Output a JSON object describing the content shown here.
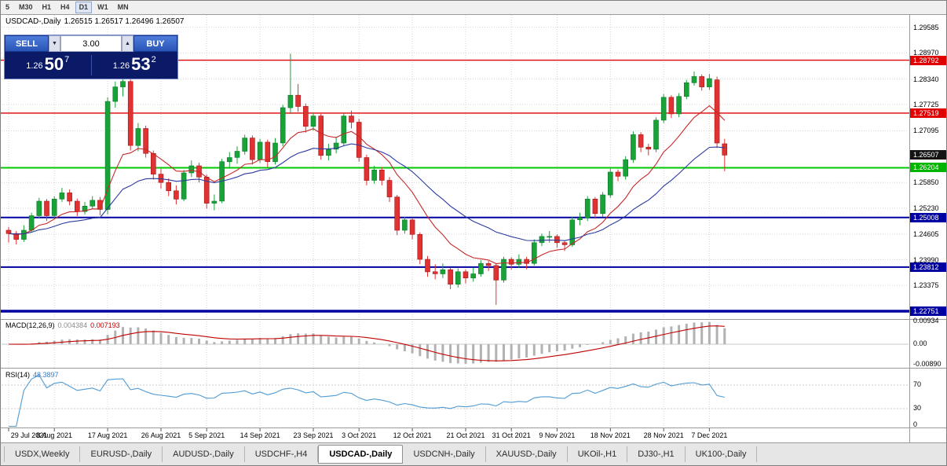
{
  "toolbar": {
    "timeframes": [
      "5",
      "M30",
      "H1",
      "H4",
      "D1",
      "W1",
      "MN"
    ],
    "active": "D1"
  },
  "chart_header": {
    "symbol": "USDCAD-,Daily",
    "ohlc": "1.26515 1.26517 1.26496 1.26507"
  },
  "trade_panel": {
    "sell_label": "SELL",
    "buy_label": "BUY",
    "volume": "3.00",
    "icons": {
      "spin_up": "▲",
      "spin_down": "▼"
    },
    "bid": {
      "main": "1.26",
      "big": "50",
      "sup": "7"
    },
    "ask": {
      "main": "1.26",
      "big": "53",
      "sup": "2"
    }
  },
  "price_axis": [
    {
      "label": "1.29585",
      "price": 1.29585,
      "type": "plain"
    },
    {
      "label": "1.28970",
      "price": 1.2897,
      "type": "plain"
    },
    {
      "label": "1.28792",
      "price": 1.28792,
      "type": "red"
    },
    {
      "label": "1.28340",
      "price": 1.2834,
      "type": "plain"
    },
    {
      "label": "1.27725",
      "price": 1.27725,
      "type": "plain"
    },
    {
      "label": "1.27519",
      "price": 1.27519,
      "type": "red"
    },
    {
      "label": "1.27095",
      "price": 1.27095,
      "type": "plain"
    },
    {
      "label": "1.26507",
      "price": 1.26507,
      "type": "current"
    },
    {
      "label": "1.26204",
      "price": 1.26204,
      "type": "green"
    },
    {
      "label": "1.25850",
      "price": 1.2585,
      "type": "plain"
    },
    {
      "label": "1.25230",
      "price": 1.2523,
      "type": "plain"
    },
    {
      "label": "1.25008",
      "price": 1.25008,
      "type": "navy"
    },
    {
      "label": "1.24605",
      "price": 1.24605,
      "type": "plain"
    },
    {
      "label": "1.23990",
      "price": 1.2399,
      "type": "plain"
    },
    {
      "label": "1.23812",
      "price": 1.23812,
      "type": "navy"
    },
    {
      "label": "1.23375",
      "price": 1.23375,
      "type": "plain"
    },
    {
      "label": "1.22751",
      "price": 1.22751,
      "type": "navy"
    }
  ],
  "levels": [
    {
      "price": 1.28792,
      "color": "#e00000",
      "w": 1.4
    },
    {
      "price": 1.27519,
      "color": "#e00000",
      "w": 1.4
    },
    {
      "price": 1.26204,
      "color": "#00c800",
      "w": 2
    },
    {
      "price": 1.25008,
      "color": "#0000a0",
      "w": 2
    },
    {
      "price": 1.23812,
      "color": "#0000a0",
      "w": 2
    },
    {
      "price": 1.22751,
      "color": "#0000a0",
      "w": 3.5
    }
  ],
  "macd_panel": {
    "name": "MACD(12,26,9)",
    "value_main": "0.004384",
    "value_signal": "0.007193",
    "axis": [
      "0.00934",
      "0.00",
      "-0.00890"
    ]
  },
  "rsi_panel": {
    "name": "RSI(14)",
    "value": "48.3897",
    "axis": [
      "70",
      "30",
      "0"
    ],
    "levels": [
      70,
      30
    ]
  },
  "date_axis": [
    {
      "i": 0,
      "label": "29 Jul 2021"
    },
    {
      "i": 6,
      "label": "8 Aug 2021"
    },
    {
      "i": 13,
      "label": "17 Aug 2021"
    },
    {
      "i": 20,
      "label": "26 Aug 2021"
    },
    {
      "i": 26,
      "label": "5 Sep 2021"
    },
    {
      "i": 33,
      "label": "14 Sep 2021"
    },
    {
      "i": 40,
      "label": "23 Sep 2021"
    },
    {
      "i": 46,
      "label": "3 Oct 2021"
    },
    {
      "i": 53,
      "label": "12 Oct 2021"
    },
    {
      "i": 60,
      "label": "21 Oct 2021"
    },
    {
      "i": 66,
      "label": "31 Oct 2021"
    },
    {
      "i": 72,
      "label": "9 Nov 2021"
    },
    {
      "i": 79,
      "label": "18 Nov 2021"
    },
    {
      "i": 86,
      "label": "28 Nov 2021"
    },
    {
      "i": 92,
      "label": "7 Dec 2021"
    }
  ],
  "tabs": [
    {
      "label": "USDX,Weekly",
      "active": false
    },
    {
      "label": "EURUSD-,Daily",
      "active": false
    },
    {
      "label": "AUDUSD-,Daily",
      "active": false
    },
    {
      "label": "USDCHF-,H4",
      "active": false
    },
    {
      "label": "USDCAD-,Daily",
      "active": true
    },
    {
      "label": "USDCNH-,Daily",
      "active": false
    },
    {
      "label": "XAUUSD-,Daily",
      "active": false
    },
    {
      "label": "UKOil-,H1",
      "active": false
    },
    {
      "label": "DJ30-,H1",
      "active": false
    },
    {
      "label": "UK100-,Daily",
      "active": false
    }
  ],
  "chart_data": {
    "type": "candlestick",
    "title": "USDCAD Daily",
    "last_close": 1.26507,
    "y_range": [
      1.226,
      1.2975
    ],
    "x_range_dates": [
      "29 Jul 2021",
      "8 Dec 2021"
    ],
    "up_color": "#18a238",
    "down_color": "#e03232",
    "ma_fast_color": "#c62828",
    "ma_slow_color": "#2b3a9e",
    "candles": [
      [
        1.247,
        1.2478,
        1.244,
        1.2462
      ],
      [
        1.2462,
        1.2468,
        1.2436,
        1.2448
      ],
      [
        1.2448,
        1.2482,
        1.2442,
        1.247
      ],
      [
        1.247,
        1.2512,
        1.2465,
        1.2505
      ],
      [
        1.2505,
        1.2548,
        1.2498,
        1.254
      ],
      [
        1.254,
        1.2545,
        1.2492,
        1.2505
      ],
      [
        1.2505,
        1.2552,
        1.25,
        1.2545
      ],
      [
        1.2545,
        1.2572,
        1.2538,
        1.256
      ],
      [
        1.256,
        1.2568,
        1.253,
        1.254
      ],
      [
        1.254,
        1.2546,
        1.2504,
        1.2515
      ],
      [
        1.2515,
        1.2538,
        1.2508,
        1.2528
      ],
      [
        1.2528,
        1.2552,
        1.252,
        1.2542
      ],
      [
        1.2542,
        1.255,
        1.2506,
        1.252
      ],
      [
        1.252,
        1.279,
        1.2508,
        1.278
      ],
      [
        1.278,
        1.2828,
        1.2765,
        1.2815
      ],
      [
        1.2815,
        1.2838,
        1.2792,
        1.2828
      ],
      [
        1.2828,
        1.2843,
        1.2662,
        1.2674
      ],
      [
        1.2674,
        1.2728,
        1.266,
        1.2715
      ],
      [
        1.2715,
        1.2722,
        1.2645,
        1.2655
      ],
      [
        1.2655,
        1.2662,
        1.2592,
        1.2605
      ],
      [
        1.2605,
        1.2618,
        1.257,
        1.2585
      ],
      [
        1.2585,
        1.2595,
        1.2552,
        1.2565
      ],
      [
        1.2565,
        1.2578,
        1.2532,
        1.2545
      ],
      [
        1.2545,
        1.2615,
        1.254,
        1.2608
      ],
      [
        1.2608,
        1.2638,
        1.2598,
        1.2625
      ],
      [
        1.2625,
        1.2632,
        1.2585,
        1.2598
      ],
      [
        1.2598,
        1.2604,
        1.2522,
        1.2535
      ],
      [
        1.2535,
        1.2556,
        1.2518,
        1.254
      ],
      [
        1.254,
        1.2642,
        1.2535,
        1.2635
      ],
      [
        1.2635,
        1.2658,
        1.2618,
        1.2645
      ],
      [
        1.2645,
        1.2672,
        1.263,
        1.266
      ],
      [
        1.266,
        1.27,
        1.2652,
        1.2692
      ],
      [
        1.2692,
        1.2698,
        1.2628,
        1.264
      ],
      [
        1.264,
        1.269,
        1.2632,
        1.2682
      ],
      [
        1.2682,
        1.2688,
        1.2622,
        1.2635
      ],
      [
        1.2635,
        1.2692,
        1.2628,
        1.268
      ],
      [
        1.268,
        1.2772,
        1.2672,
        1.2765
      ],
      [
        1.2765,
        1.2895,
        1.275,
        1.2795
      ],
      [
        1.2795,
        1.2822,
        1.2755,
        1.2768
      ],
      [
        1.2768,
        1.2775,
        1.2705,
        1.272
      ],
      [
        1.272,
        1.2752,
        1.271,
        1.2745
      ],
      [
        1.2745,
        1.275,
        1.264,
        1.265
      ],
      [
        1.265,
        1.2678,
        1.2638,
        1.2665
      ],
      [
        1.2665,
        1.2695,
        1.2655,
        1.268
      ],
      [
        1.268,
        1.2752,
        1.2672,
        1.2745
      ],
      [
        1.2745,
        1.2758,
        1.2715,
        1.273
      ],
      [
        1.273,
        1.2738,
        1.2635,
        1.2645
      ],
      [
        1.2645,
        1.2652,
        1.2578,
        1.259
      ],
      [
        1.259,
        1.2625,
        1.2582,
        1.2615
      ],
      [
        1.2615,
        1.2622,
        1.2578,
        1.259
      ],
      [
        1.259,
        1.2598,
        1.2538,
        1.255
      ],
      [
        1.255,
        1.2555,
        1.2458,
        1.247
      ],
      [
        1.247,
        1.2502,
        1.2462,
        1.2495
      ],
      [
        1.2495,
        1.25,
        1.2448,
        1.246
      ],
      [
        1.246,
        1.2465,
        1.2388,
        1.24
      ],
      [
        1.24,
        1.2408,
        1.2358,
        1.237
      ],
      [
        1.237,
        1.2388,
        1.2352,
        1.2365
      ],
      [
        1.2365,
        1.239,
        1.2355,
        1.2375
      ],
      [
        1.2375,
        1.238,
        1.2328,
        1.234
      ],
      [
        1.234,
        1.2378,
        1.2332,
        1.237
      ],
      [
        1.237,
        1.2376,
        1.2342,
        1.2355
      ],
      [
        1.2355,
        1.238,
        1.2346,
        1.2365
      ],
      [
        1.2365,
        1.2398,
        1.2358,
        1.239
      ],
      [
        1.239,
        1.2396,
        1.2372,
        1.2385
      ],
      [
        1.2385,
        1.239,
        1.229,
        1.235
      ],
      [
        1.235,
        1.2406,
        1.2344,
        1.24
      ],
      [
        1.24,
        1.2405,
        1.2375,
        1.2388
      ],
      [
        1.2388,
        1.2412,
        1.238,
        1.24
      ],
      [
        1.24,
        1.2406,
        1.2376,
        1.239
      ],
      [
        1.239,
        1.2448,
        1.2385,
        1.244
      ],
      [
        1.244,
        1.2462,
        1.2432,
        1.2455
      ],
      [
        1.2455,
        1.2468,
        1.244,
        1.2455
      ],
      [
        1.2455,
        1.246,
        1.2428,
        1.244
      ],
      [
        1.244,
        1.2446,
        1.242,
        1.2435
      ],
      [
        1.2435,
        1.2502,
        1.243,
        1.2495
      ],
      [
        1.2495,
        1.2512,
        1.2482,
        1.25
      ],
      [
        1.25,
        1.2552,
        1.2492,
        1.2545
      ],
      [
        1.2545,
        1.255,
        1.2498,
        1.251
      ],
      [
        1.251,
        1.2562,
        1.2502,
        1.2555
      ],
      [
        1.2555,
        1.2618,
        1.2548,
        1.261
      ],
      [
        1.261,
        1.2616,
        1.2588,
        1.26
      ],
      [
        1.26,
        1.2648,
        1.2592,
        1.264
      ],
      [
        1.264,
        1.2708,
        1.2632,
        1.27
      ],
      [
        1.27,
        1.2706,
        1.2658,
        1.267
      ],
      [
        1.267,
        1.2678,
        1.265,
        1.2665
      ],
      [
        1.2665,
        1.2742,
        1.2658,
        1.2735
      ],
      [
        1.2735,
        1.2798,
        1.2728,
        1.279
      ],
      [
        1.279,
        1.2795,
        1.274,
        1.275
      ],
      [
        1.275,
        1.28,
        1.2742,
        1.2792
      ],
      [
        1.2792,
        1.2832,
        1.2785,
        1.2825
      ],
      [
        1.2825,
        1.2852,
        1.2818,
        1.284
      ],
      [
        1.284,
        1.2845,
        1.2806,
        1.2815
      ],
      [
        1.2815,
        1.2846,
        1.2808,
        1.2835
      ],
      [
        1.2832,
        1.284,
        1.2668,
        1.268
      ],
      [
        1.2678,
        1.269,
        1.2612,
        1.26507
      ]
    ],
    "macd": {
      "fast": 12,
      "slow": 26,
      "signal": 9,
      "hist_color": "#b2b2b2",
      "signal_color": "#c00000",
      "y_range": [
        -0.0089,
        0.0096
      ]
    },
    "rsi": {
      "period": 14,
      "color": "#4f9bd5",
      "y_range": [
        0,
        100
      ]
    }
  }
}
